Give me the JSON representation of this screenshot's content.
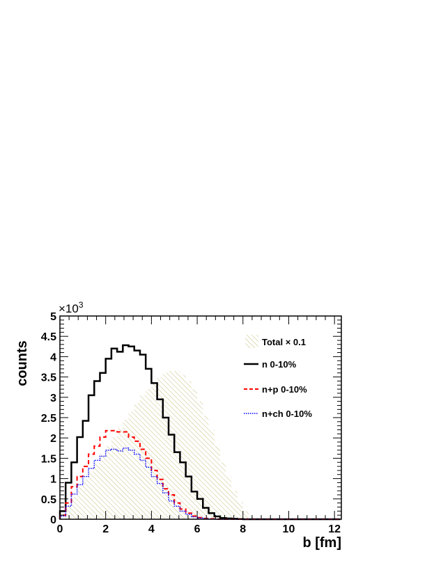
{
  "chart_data": {
    "type": "line",
    "style": "step-histogram",
    "xlabel": "b [fm]",
    "ylabel": "counts",
    "y_multiplier": "×10",
    "y_multiplier_exp": "3",
    "xlim": [
      0,
      12.3
    ],
    "ylim": [
      0,
      5
    ],
    "x_ticks": [
      "0",
      "2",
      "4",
      "6",
      "8",
      "10",
      "12"
    ],
    "y_ticks": [
      "0",
      "0.5",
      "1",
      "1.5",
      "2",
      "2.5",
      "3",
      "3.5",
      "4",
      "4.5",
      "5"
    ],
    "grid": false,
    "legend_position": "top-right",
    "bin_width": 0.25,
    "bin_start": 0,
    "series": [
      {
        "name": "Total × 0.1",
        "style": "hatched-fill",
        "color": "#b6ad5c",
        "values": [
          0.12,
          0.32,
          0.55,
          0.78,
          0.98,
          1.18,
          1.38,
          1.6,
          1.8,
          2.02,
          2.25,
          2.45,
          2.65,
          2.85,
          3.05,
          3.2,
          3.35,
          3.5,
          3.6,
          3.65,
          3.65,
          3.55,
          3.4,
          3.2,
          2.9,
          2.55,
          2.2,
          1.8,
          1.4,
          1.05,
          0.7,
          0.42,
          0.2,
          0.08,
          0.02,
          0.005,
          0,
          0,
          0,
          0,
          0,
          0,
          0,
          0,
          0,
          0,
          0,
          0,
          0
        ]
      },
      {
        "name": "n 0-10%",
        "style": "solid",
        "color": "#000000",
        "values": [
          0.2,
          0.9,
          1.4,
          2.02,
          2.42,
          3.05,
          3.4,
          3.6,
          3.95,
          4.2,
          4.12,
          4.28,
          4.25,
          4.15,
          4.05,
          3.7,
          3.35,
          2.95,
          2.5,
          2.08,
          1.65,
          1.4,
          1.05,
          0.68,
          0.5,
          0.28,
          0.15,
          0.07,
          0.03,
          0.02,
          0.01,
          0.005,
          0,
          0,
          0,
          0,
          0,
          0,
          0,
          0,
          0,
          0,
          0,
          0,
          0,
          0,
          0,
          0,
          0
        ]
      },
      {
        "name": "n+p 0-10%",
        "style": "dashed",
        "color": "#ff0000",
        "values": [
          0.1,
          0.4,
          0.8,
          1.05,
          1.3,
          1.6,
          1.8,
          2.02,
          2.18,
          2.18,
          2.15,
          2.15,
          2.02,
          1.92,
          1.72,
          1.5,
          1.2,
          0.98,
          0.75,
          0.6,
          0.4,
          0.25,
          0.15,
          0.08,
          0.04,
          0.02,
          0.01,
          0,
          0,
          0,
          0,
          0,
          0,
          0,
          0,
          0,
          0,
          0,
          0,
          0,
          0,
          0,
          0,
          0,
          0,
          0,
          0,
          0,
          0
        ]
      },
      {
        "name": "n+ch 0-10%",
        "style": "dotted",
        "color": "#0000ff",
        "values": [
          0.08,
          0.32,
          0.62,
          0.85,
          1.05,
          1.25,
          1.45,
          1.55,
          1.7,
          1.72,
          1.68,
          1.75,
          1.7,
          1.6,
          1.45,
          1.28,
          1.05,
          0.88,
          0.65,
          0.45,
          0.32,
          0.2,
          0.12,
          0.06,
          0.03,
          0.015,
          0.005,
          0,
          0,
          0,
          0,
          0,
          0,
          0,
          0,
          0,
          0,
          0,
          0,
          0,
          0,
          0,
          0,
          0,
          0,
          0,
          0,
          0,
          0
        ]
      }
    ]
  }
}
